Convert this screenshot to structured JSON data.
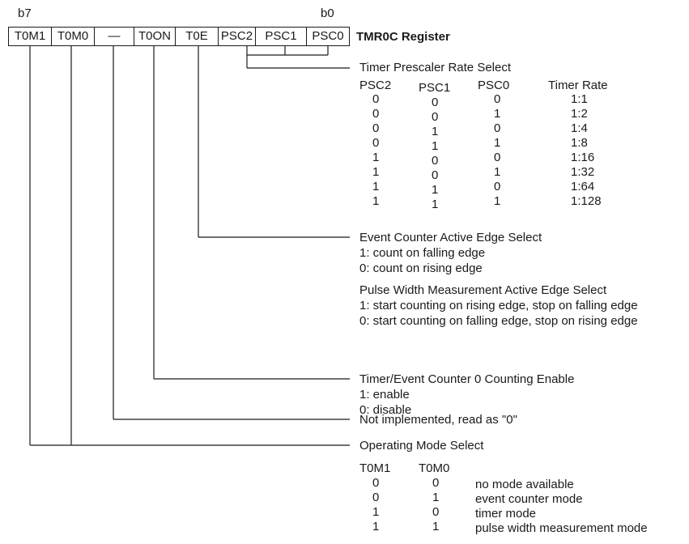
{
  "register": {
    "msb_label": "b7",
    "lsb_label": "b0",
    "title": "TMR0C Register",
    "bits": [
      "T0M1",
      "T0M0",
      "—",
      "T0ON",
      "T0E",
      "PSC2",
      "PSC1",
      "PSC0"
    ]
  },
  "prescaler": {
    "title": "Timer Prescaler Rate Select",
    "headers": [
      "PSC2",
      "PSC1",
      "PSC0",
      "Timer Rate"
    ],
    "rows": [
      [
        "0",
        "0",
        "0",
        "1:1"
      ],
      [
        "0",
        "0",
        "1",
        "1:2"
      ],
      [
        "0",
        "1",
        "0",
        "1:4"
      ],
      [
        "0",
        "1",
        "1",
        "1:8"
      ],
      [
        "1",
        "0",
        "0",
        "1:16"
      ],
      [
        "1",
        "0",
        "1",
        "1:32"
      ],
      [
        "1",
        "1",
        "0",
        "1:64"
      ],
      [
        "1",
        "1",
        "1",
        "1:128"
      ]
    ]
  },
  "edge": {
    "title": "Event Counter Active Edge Select",
    "line1": "1: count on falling edge",
    "line2": "0: count on rising edge",
    "pw_title": "Pulse Width Measurement Active Edge Select",
    "pw_line1": "1: start counting on rising edge, stop on falling edge",
    "pw_line2": "0: start counting on falling edge, stop on rising edge"
  },
  "enable": {
    "title": "Timer/Event Counter 0 Counting Enable",
    "line1": "1: enable",
    "line2": "0: disable"
  },
  "unimpl": {
    "title": "Not implemented, read as \"0\""
  },
  "mode": {
    "title": "Operating Mode Select",
    "headers": [
      "T0M1",
      "T0M0"
    ],
    "rows": [
      [
        "0",
        "0",
        "no mode available"
      ],
      [
        "0",
        "1",
        "event counter mode"
      ],
      [
        "1",
        "0",
        "timer mode"
      ],
      [
        "1",
        "1",
        "pulse width measurement mode"
      ]
    ]
  }
}
